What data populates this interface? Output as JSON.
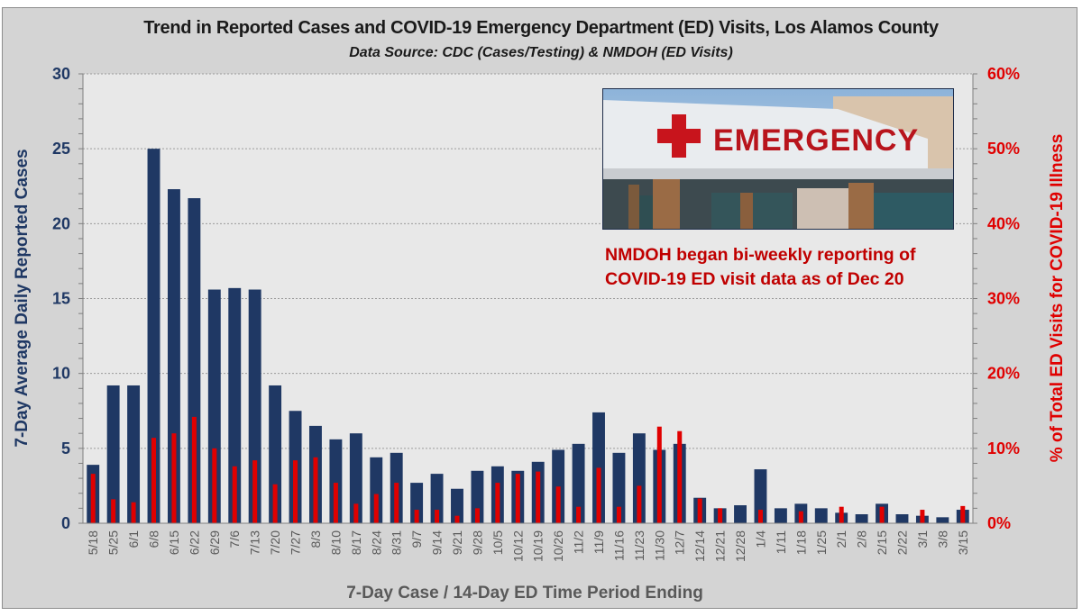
{
  "chart_data": {
    "type": "bar",
    "title": "Trend in Reported Cases and COVID-19 Emergency Department (ED) Visits, Los Alamos County",
    "subtitle": "Data Source: CDC (Cases/Testing) & NMDOH (ED Visits)",
    "xlabel": "7-Day Case / 14-Day ED Time Period Ending",
    "ylabel": "7-Day Average Daily Reported Cases",
    "y2label": "% of Total ED Visits for COVID-19 Illness",
    "ylim": [
      0,
      30
    ],
    "y2lim": [
      0,
      60
    ],
    "yticks": [
      "0",
      "5",
      "10",
      "15",
      "20",
      "25",
      "30"
    ],
    "y2ticks": [
      "0%",
      "10%",
      "20%",
      "30%",
      "40%",
      "50%",
      "60%"
    ],
    "grid": true,
    "categories": [
      "5/18",
      "5/25",
      "6/1",
      "6/8",
      "6/15",
      "6/22",
      "6/29",
      "7/6",
      "7/13",
      "7/20",
      "7/27",
      "8/3",
      "8/10",
      "8/17",
      "8/24",
      "8/31",
      "9/7",
      "9/14",
      "9/21",
      "9/28",
      "10/5",
      "10/12",
      "10/19",
      "10/26",
      "11/2",
      "11/9",
      "11/16",
      "11/23",
      "11/30",
      "12/7",
      "12/14",
      "12/21",
      "12/28",
      "1/4",
      "1/11",
      "1/18",
      "1/25",
      "2/1",
      "2/8",
      "2/15",
      "2/22",
      "3/1",
      "3/8",
      "3/15"
    ],
    "series": [
      {
        "name": "7-Day Average Daily Reported Cases",
        "axis": "left",
        "color": "#1f3864",
        "values": [
          3.9,
          9.2,
          9.2,
          25.0,
          22.3,
          21.7,
          15.6,
          15.7,
          15.6,
          9.2,
          7.5,
          6.5,
          5.6,
          6.0,
          4.4,
          4.7,
          2.7,
          3.3,
          2.3,
          3.5,
          3.8,
          3.5,
          4.1,
          4.9,
          5.3,
          7.4,
          4.7,
          6.0,
          4.9,
          5.3,
          1.7,
          1.0,
          1.2,
          3.6,
          1.0,
          1.3,
          1.0,
          0.7,
          0.6,
          1.3,
          0.6,
          0.5,
          0.4,
          0.9
        ]
      },
      {
        "name": "% of Total ED Visits for COVID-19 Illness",
        "axis": "right",
        "color": "#e00000",
        "values": [
          6.6,
          3.2,
          2.8,
          11.4,
          12.0,
          14.2,
          10.0,
          7.6,
          8.4,
          5.2,
          8.4,
          8.8,
          5.4,
          2.6,
          3.9,
          5.4,
          1.8,
          1.8,
          1.0,
          2.0,
          5.4,
          6.6,
          6.9,
          4.9,
          2.2,
          7.4,
          2.2,
          5.0,
          12.9,
          12.3,
          3.3,
          2.0,
          null,
          1.8,
          null,
          1.6,
          null,
          2.2,
          null,
          2.2,
          null,
          1.8,
          null,
          2.3
        ]
      }
    ],
    "annotation": "NMDOH began bi-weekly reporting of COVID-19 ED visit data as of Dec 20",
    "image_caption": "EMERGENCY"
  }
}
